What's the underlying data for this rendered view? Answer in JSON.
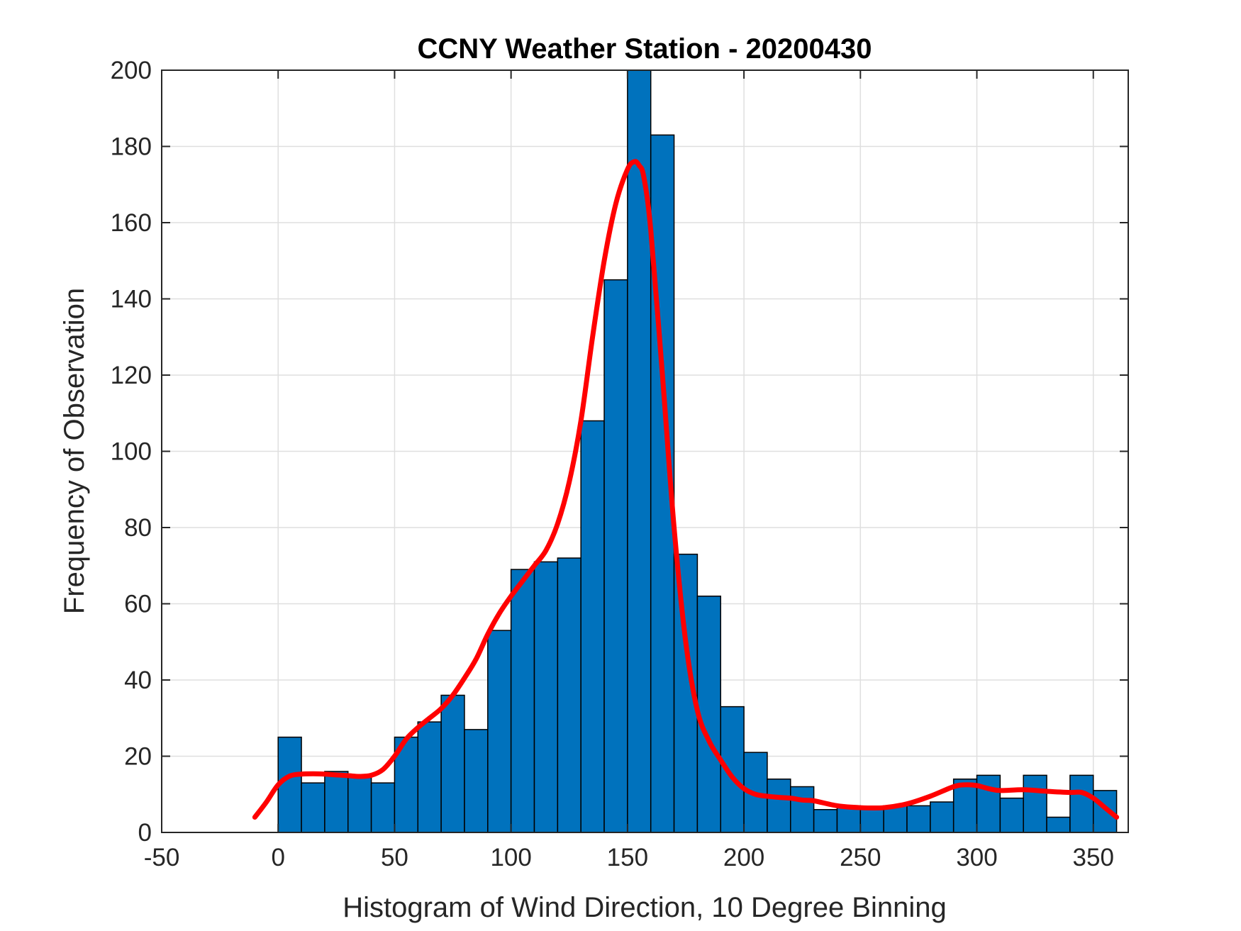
{
  "chart_data": {
    "type": "bar",
    "title": "CCNY Weather Station - 20200430",
    "xlabel": "Histogram of Wind Direction, 10 Degree Binning",
    "ylabel": "Frequency of Observation",
    "xlim": [
      -50,
      365
    ],
    "ylim": [
      0,
      200
    ],
    "xticks": [
      -50,
      0,
      50,
      100,
      150,
      200,
      250,
      300,
      350
    ],
    "yticks": [
      0,
      20,
      40,
      60,
      80,
      100,
      120,
      140,
      160,
      180,
      200
    ],
    "grid": true,
    "bin_width": 10,
    "bin_edges": [
      0,
      10,
      20,
      30,
      40,
      50,
      60,
      70,
      80,
      90,
      100,
      110,
      120,
      130,
      140,
      150,
      160,
      170,
      180,
      190,
      200,
      210,
      220,
      230,
      240,
      250,
      260,
      270,
      280,
      290,
      300,
      310,
      320,
      330,
      340,
      350,
      360
    ],
    "values": [
      25,
      13,
      16,
      15,
      13,
      25,
      29,
      36,
      27,
      53,
      69,
      71,
      72,
      108,
      145,
      200,
      183,
      73,
      62,
      33,
      21,
      14,
      12,
      6,
      7,
      6,
      7,
      7,
      8,
      14,
      15,
      9,
      15,
      4,
      15,
      11
    ],
    "fit_curve": {
      "x": [
        -10,
        -5,
        0,
        5,
        10,
        15,
        20,
        25,
        30,
        35,
        40,
        45,
        50,
        55,
        60,
        65,
        70,
        75,
        80,
        85,
        90,
        95,
        100,
        105,
        110,
        115,
        120,
        125,
        130,
        135,
        140,
        145,
        150,
        153,
        155,
        157,
        160,
        165,
        170,
        175,
        180,
        185,
        190,
        195,
        200,
        205,
        210,
        215,
        220,
        225,
        230,
        240,
        250,
        260,
        270,
        280,
        290,
        295,
        300,
        305,
        310,
        320,
        330,
        340,
        345,
        350,
        355,
        360
      ],
      "y": [
        4,
        8,
        12.5,
        14.8,
        15.3,
        15.4,
        15.3,
        15.1,
        14.9,
        14.7,
        15,
        16.5,
        20,
        24.5,
        27.5,
        30,
        32.5,
        36,
        40.5,
        45.5,
        52,
        57.5,
        62,
        66,
        70,
        74,
        81,
        92,
        108,
        130,
        150,
        165,
        174,
        176,
        175,
        172,
        158,
        120,
        80,
        50,
        32,
        24,
        19,
        14.5,
        11.5,
        10,
        9.5,
        9.2,
        9,
        8.5,
        8.3,
        7,
        6.5,
        6.5,
        7.5,
        9.5,
        12,
        12.5,
        12.3,
        11.5,
        11,
        11.2,
        10.8,
        10.5,
        10.5,
        9,
        6.5,
        4
      ]
    },
    "colors": {
      "bar_fill": "#0072bd",
      "bar_edge": "#000000",
      "fit_line": "#ff0000",
      "grid": "#dfdfdf",
      "axes": "#262626"
    }
  }
}
